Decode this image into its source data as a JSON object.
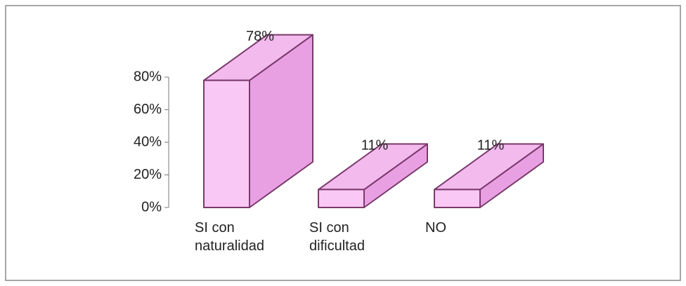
{
  "chart_data": {
    "type": "bar",
    "categories": [
      "SI con naturalidad",
      "SI con dificultad",
      "NO"
    ],
    "values": [
      78,
      11,
      11
    ],
    "value_labels": [
      "78%",
      "11%",
      "11%"
    ],
    "color": "#f9c8f5",
    "ylim": [
      0,
      80
    ],
    "yticks": [
      {
        "value": 0,
        "label": "0%"
      },
      {
        "value": 20,
        "label": "20%"
      },
      {
        "value": 40,
        "label": "40%"
      },
      {
        "value": 60,
        "label": "60%"
      },
      {
        "value": 80,
        "label": "80%"
      }
    ]
  }
}
